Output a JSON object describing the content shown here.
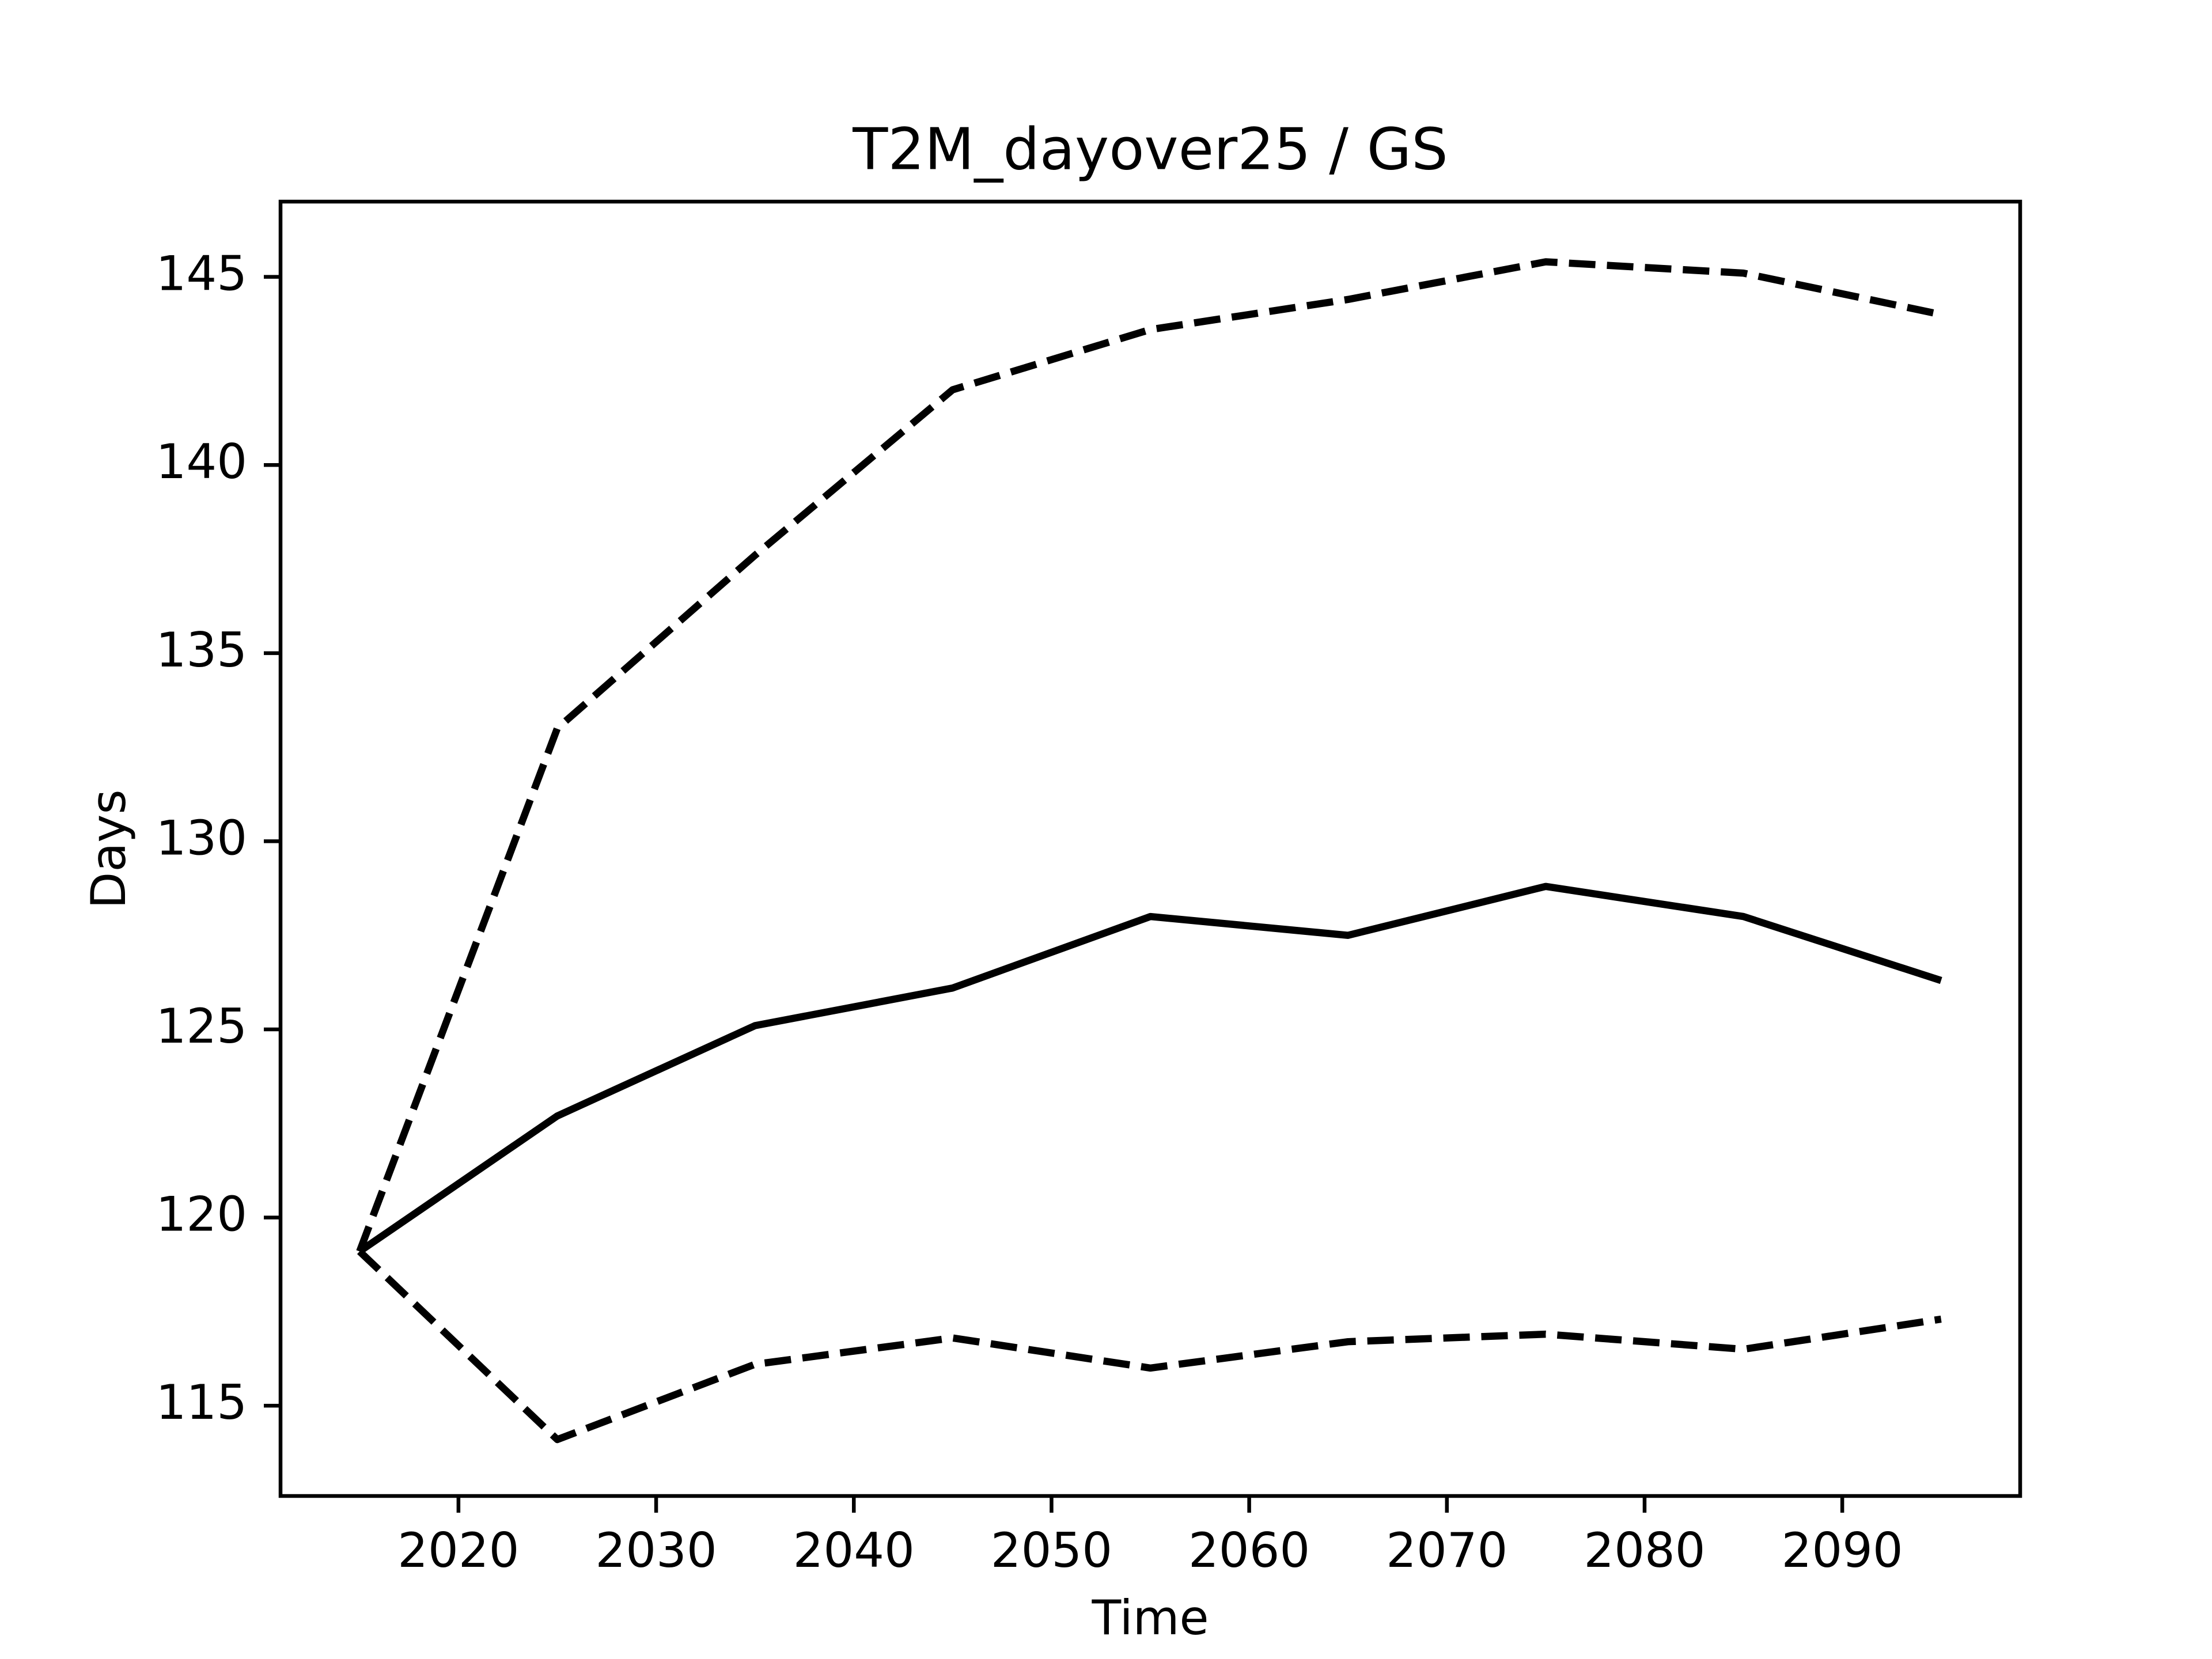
{
  "chart_data": {
    "type": "line",
    "title": "T2M_dayover25 / GS",
    "xlabel": "Time",
    "ylabel": "Days",
    "x": [
      2015,
      2025,
      2035,
      2045,
      2055,
      2065,
      2075,
      2085,
      2095
    ],
    "series": [
      {
        "color": "#000000",
        "linestyle": "solid",
        "values": [
          119.1,
          122.7,
          125.1,
          126.1,
          128.0,
          127.5,
          128.8,
          128.0,
          126.3
        ]
      },
      {
        "color": "#000000",
        "linestyle": "dashed",
        "values": [
          119.1,
          133.0,
          137.6,
          142.0,
          143.6,
          144.4,
          145.4,
          145.1,
          144.0
        ]
      },
      {
        "color": "#000000",
        "linestyle": "dashed",
        "values": [
          119.1,
          114.1,
          116.1,
          116.8,
          116.0,
          116.7,
          116.9,
          116.5,
          117.3
        ]
      }
    ],
    "xlim": [
      2011,
      2099
    ],
    "xticks": [
      2020,
      2030,
      2040,
      2050,
      2060,
      2070,
      2080,
      2090
    ],
    "ylim": [
      112.6,
      147
    ],
    "yticks": [
      115,
      120,
      125,
      130,
      135,
      140,
      145
    ],
    "grid": false
  }
}
